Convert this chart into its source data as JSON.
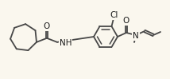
{
  "background_color": "#faf7ee",
  "line_color": "#484848",
  "text_color": "#1a1a1a",
  "bond_lw": 1.3,
  "figsize": [
    2.14,
    0.99
  ],
  "dpi": 100,
  "xlim": [
    0,
    214
  ],
  "ylim": [
    0,
    99
  ]
}
